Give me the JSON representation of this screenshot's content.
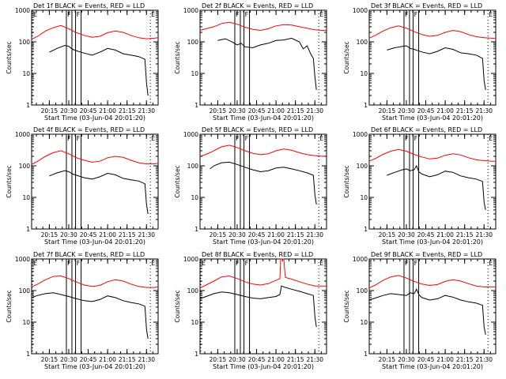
{
  "figure": {
    "colors": {
      "events": "#000000",
      "lld": "#ff0000",
      "axes": "#000000"
    },
    "ylabel": "Counts/sec",
    "xlabel": "Start Time (03-Jun-04 20:01:20)",
    "y_ticks": [
      1,
      10,
      100,
      1000
    ],
    "y_tick_labels": [
      "1",
      "10",
      "100",
      "1000"
    ],
    "x_ticks": [
      20.25,
      20.5,
      20.75,
      21.0,
      21.25,
      21.5
    ],
    "x_tick_labels": [
      "20:15",
      "20:30",
      "20:45",
      "21:00",
      "21:15",
      "21:30"
    ],
    "x_range_hours": [
      20.022,
      21.65
    ],
    "y_range": [
      1,
      1000
    ]
  },
  "chart_data": [
    {
      "type": "line",
      "title": "Det 1f BLACK = Events, RED = LLD",
      "markers": {
        "E": [
          20.005,
          21.55
        ],
        "F": [
          20.5,
          20.618
        ]
      },
      "series": [
        {
          "name": "Events",
          "color": "#000000",
          "t": [
            20.25,
            20.35,
            20.45,
            20.5,
            20.55,
            20.6,
            20.7,
            20.8,
            20.9,
            21.0,
            21.1,
            21.2,
            21.3,
            21.4,
            21.48,
            21.5,
            21.52
          ],
          "v": [
            47,
            62,
            77,
            72,
            58,
            52,
            44,
            38,
            47,
            62,
            55,
            42,
            38,
            34,
            28,
            5,
            2
          ]
        },
        {
          "name": "LLD",
          "color": "#ff0000",
          "t": [
            20.02,
            20.1,
            20.2,
            20.3,
            20.4,
            20.5,
            20.6,
            20.7,
            20.8,
            20.9,
            21.0,
            21.1,
            21.2,
            21.3,
            21.4,
            21.5,
            21.6,
            21.65
          ],
          "v": [
            120,
            150,
            220,
            280,
            330,
            260,
            195,
            160,
            140,
            150,
            195,
            220,
            200,
            160,
            135,
            125,
            130,
            135
          ]
        }
      ]
    },
    {
      "type": "line",
      "title": "Det 2f BLACK = Events, RED = LLD",
      "markers": {
        "E": [
          21.55
        ],
        "F": [
          20.5,
          20.618
        ]
      },
      "series": [
        {
          "name": "Events",
          "color": "#000000",
          "t": [
            20.25,
            20.35,
            20.45,
            20.5,
            20.55,
            20.6,
            20.7,
            20.8,
            20.9,
            21.0,
            21.1,
            21.2,
            21.3,
            21.35,
            21.4,
            21.45,
            21.48,
            21.5,
            21.52
          ],
          "v": [
            110,
            125,
            95,
            80,
            90,
            70,
            65,
            80,
            90,
            110,
            115,
            130,
            100,
            60,
            75,
            40,
            30,
            8,
            3
          ]
        },
        {
          "name": "LLD",
          "color": "#ff0000",
          "t": [
            20.02,
            20.1,
            20.2,
            20.3,
            20.4,
            20.5,
            20.6,
            20.7,
            20.8,
            20.9,
            21.0,
            21.1,
            21.2,
            21.3,
            21.4,
            21.5,
            21.6,
            21.65
          ],
          "v": [
            230,
            260,
            300,
            380,
            420,
            360,
            290,
            250,
            230,
            260,
            320,
            350,
            340,
            300,
            270,
            240,
            230,
            235
          ]
        }
      ]
    },
    {
      "type": "line",
      "title": "Det 3f BLACK = Events, RED = LLD",
      "markers": {
        "E": [
          21.55
        ],
        "F": [
          20.5,
          20.618
        ]
      },
      "series": [
        {
          "name": "Events",
          "color": "#000000",
          "t": [
            20.25,
            20.35,
            20.45,
            20.5,
            20.55,
            20.6,
            20.7,
            20.8,
            20.9,
            21.0,
            21.1,
            21.2,
            21.3,
            21.4,
            21.48,
            21.5,
            21.52
          ],
          "v": [
            55,
            65,
            72,
            75,
            62,
            58,
            48,
            42,
            50,
            65,
            58,
            45,
            42,
            38,
            30,
            6,
            3
          ]
        },
        {
          "name": "LLD",
          "color": "#ff0000",
          "t": [
            20.02,
            20.1,
            20.2,
            20.3,
            20.4,
            20.5,
            20.6,
            20.7,
            20.8,
            20.9,
            21.0,
            21.1,
            21.2,
            21.3,
            21.4,
            21.5,
            21.6,
            21.65
          ],
          "v": [
            130,
            160,
            220,
            280,
            320,
            270,
            210,
            170,
            150,
            160,
            200,
            230,
            210,
            170,
            145,
            135,
            130,
            130
          ]
        }
      ]
    },
    {
      "type": "line",
      "title": "Det 4f BLACK = Events, RED = LLD",
      "markers": {
        "E": [
          21.55
        ],
        "F": [
          20.5,
          20.618
        ]
      },
      "series": [
        {
          "name": "Events",
          "color": "#000000",
          "t": [
            20.25,
            20.35,
            20.45,
            20.5,
            20.55,
            20.6,
            20.7,
            20.8,
            20.9,
            21.0,
            21.1,
            21.2,
            21.3,
            21.4,
            21.48,
            21.5,
            21.52
          ],
          "v": [
            48,
            60,
            70,
            65,
            55,
            50,
            42,
            38,
            45,
            58,
            52,
            40,
            36,
            33,
            27,
            6,
            3
          ]
        },
        {
          "name": "LLD",
          "color": "#ff0000",
          "t": [
            20.02,
            20.1,
            20.2,
            20.3,
            20.4,
            20.5,
            20.6,
            20.7,
            20.8,
            20.9,
            21.0,
            21.1,
            21.2,
            21.3,
            21.4,
            21.5,
            21.6,
            21.65
          ],
          "v": [
            110,
            140,
            200,
            260,
            300,
            240,
            180,
            150,
            130,
            140,
            180,
            200,
            185,
            150,
            125,
            115,
            115,
            120
          ]
        }
      ]
    },
    {
      "type": "line",
      "title": "Det 5f BLACK = Events, RED = LLD",
      "markers": {
        "E": [
          21.55
        ],
        "F": [
          20.5,
          20.618
        ]
      },
      "series": [
        {
          "name": "Events",
          "color": "#000000",
          "t": [
            20.15,
            20.2,
            20.3,
            20.4,
            20.5,
            20.6,
            20.7,
            20.8,
            20.9,
            21.0,
            21.1,
            21.2,
            21.3,
            21.4,
            21.48,
            21.5,
            21.52
          ],
          "v": [
            80,
            100,
            125,
            130,
            110,
            90,
            75,
            65,
            70,
            85,
            90,
            80,
            70,
            60,
            50,
            12,
            6
          ]
        },
        {
          "name": "LLD",
          "color": "#ff0000",
          "t": [
            20.02,
            20.1,
            20.2,
            20.3,
            20.4,
            20.5,
            20.6,
            20.7,
            20.8,
            20.9,
            21.0,
            21.1,
            21.2,
            21.3,
            21.4,
            21.5,
            21.6,
            21.65
          ],
          "v": [
            200,
            230,
            300,
            400,
            450,
            380,
            300,
            250,
            225,
            240,
            300,
            340,
            310,
            260,
            225,
            210,
            200,
            205
          ]
        }
      ]
    },
    {
      "type": "line",
      "title": "Det 6f BLACK = Events, RED = LLD",
      "markers": {
        "E": [
          21.55
        ],
        "F": [
          20.5,
          20.618
        ]
      },
      "series": [
        {
          "name": "Events",
          "color": "#000000",
          "t": [
            20.25,
            20.35,
            20.45,
            20.5,
            20.55,
            20.6,
            20.63,
            20.66,
            20.7,
            20.8,
            20.9,
            21.0,
            21.1,
            21.2,
            21.3,
            21.4,
            21.48,
            21.5,
            21.52
          ],
          "v": [
            50,
            62,
            75,
            80,
            70,
            75,
            100,
            65,
            55,
            45,
            52,
            68,
            62,
            48,
            42,
            38,
            32,
            7,
            4
          ]
        },
        {
          "name": "LLD",
          "color": "#ff0000",
          "t": [
            20.02,
            20.1,
            20.2,
            20.3,
            20.4,
            20.5,
            20.6,
            20.7,
            20.8,
            20.9,
            21.0,
            21.1,
            21.2,
            21.3,
            21.4,
            21.5,
            21.6,
            21.65
          ],
          "v": [
            140,
            170,
            230,
            290,
            330,
            290,
            230,
            190,
            165,
            175,
            215,
            240,
            220,
            180,
            155,
            145,
            140,
            140
          ]
        }
      ]
    },
    {
      "type": "line",
      "title": "Det 7f BLACK = Events, RED = LLD",
      "markers": {
        "E": [
          20.005,
          21.55
        ],
        "F": [
          20.5,
          20.618
        ]
      },
      "series": [
        {
          "name": "Events",
          "color": "#000000",
          "t": [
            20.02,
            20.1,
            20.2,
            20.3,
            20.4,
            20.5,
            20.6,
            20.7,
            20.8,
            20.9,
            21.0,
            21.1,
            21.2,
            21.3,
            21.4,
            21.48,
            21.5,
            21.52
          ],
          "v": [
            60,
            70,
            80,
            85,
            75,
            65,
            55,
            48,
            45,
            52,
            68,
            60,
            48,
            42,
            38,
            32,
            6,
            3
          ]
        },
        {
          "name": "LLD",
          "color": "#ff0000",
          "t": [
            20.02,
            20.1,
            20.2,
            20.3,
            20.4,
            20.5,
            20.6,
            20.7,
            20.8,
            20.9,
            21.0,
            21.1,
            21.2,
            21.3,
            21.4,
            21.5,
            21.6,
            21.65
          ],
          "v": [
            130,
            160,
            220,
            280,
            290,
            240,
            185,
            150,
            135,
            145,
            190,
            220,
            200,
            160,
            135,
            125,
            125,
            130
          ]
        }
      ]
    },
    {
      "type": "line",
      "title": "Det 8f BLACK = Events, RED = LLD",
      "markers": {
        "E": [
          20.005,
          21.55
        ],
        "F": [
          20.5,
          20.618
        ]
      },
      "series": [
        {
          "name": "Events",
          "color": "#000000",
          "t": [
            20.02,
            20.1,
            20.2,
            20.3,
            20.4,
            20.5,
            20.6,
            20.7,
            20.8,
            20.9,
            21.0,
            21.05,
            21.07,
            21.1,
            21.2,
            21.3,
            21.4,
            21.48,
            21.5,
            21.52
          ],
          "v": [
            55,
            65,
            80,
            90,
            85,
            75,
            65,
            58,
            55,
            60,
            65,
            75,
            140,
            130,
            110,
            95,
            80,
            70,
            15,
            7
          ]
        },
        {
          "name": "LLD",
          "color": "#ff0000",
          "t": [
            20.02,
            20.1,
            20.2,
            20.3,
            20.4,
            20.5,
            20.6,
            20.7,
            20.8,
            20.9,
            21.0,
            21.05,
            21.06,
            21.1,
            21.12,
            21.2,
            21.3,
            21.4,
            21.5,
            21.6,
            21.65
          ],
          "v": [
            120,
            150,
            200,
            270,
            290,
            240,
            190,
            160,
            150,
            165,
            210,
            240,
            1000,
            1000,
            260,
            230,
            190,
            160,
            140,
            140,
            140
          ]
        }
      ]
    },
    {
      "type": "line",
      "title": "Det 9f BLACK = Events, RED = LLD",
      "markers": {
        "E": [
          21.55
        ],
        "F": [
          20.5,
          20.618
        ]
      },
      "series": [
        {
          "name": "Events",
          "color": "#000000",
          "t": [
            20.02,
            20.1,
            20.2,
            20.3,
            20.4,
            20.5,
            20.55,
            20.6,
            20.63,
            20.66,
            20.7,
            20.8,
            20.9,
            21.0,
            21.1,
            21.2,
            21.3,
            21.4,
            21.48,
            21.5,
            21.52
          ],
          "v": [
            50,
            58,
            70,
            80,
            75,
            70,
            85,
            80,
            110,
            75,
            60,
            50,
            55,
            70,
            62,
            50,
            44,
            40,
            34,
            7,
            4
          ]
        },
        {
          "name": "LLD",
          "color": "#ff0000",
          "t": [
            20.02,
            20.1,
            20.2,
            20.3,
            20.4,
            20.5,
            20.6,
            20.7,
            20.8,
            20.9,
            21.0,
            21.1,
            21.2,
            21.3,
            21.4,
            21.5,
            21.6,
            21.65
          ],
          "v": [
            120,
            150,
            210,
            270,
            300,
            250,
            195,
            160,
            145,
            155,
            195,
            220,
            200,
            165,
            140,
            130,
            130,
            130
          ]
        }
      ]
    }
  ]
}
